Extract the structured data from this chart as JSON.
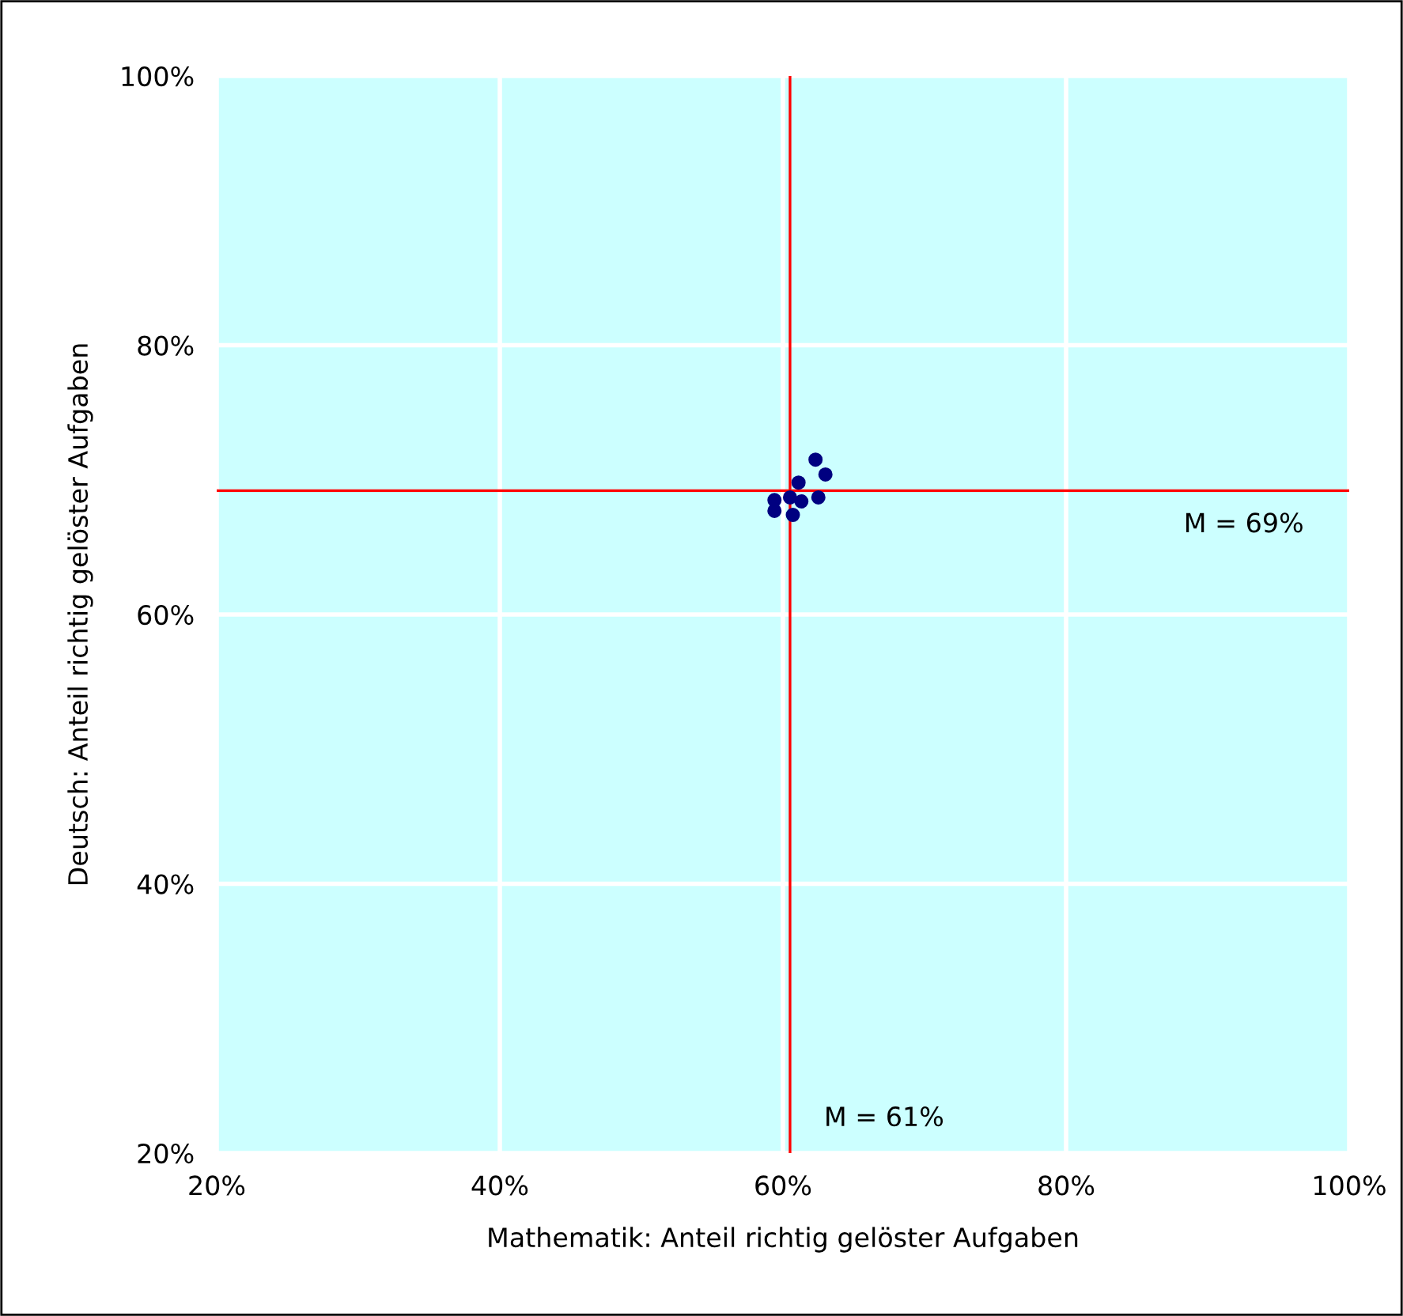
{
  "chart_data": {
    "type": "scatter",
    "xlabel": "Mathematik: Anteil richtig gelöster Aufgaben",
    "ylabel": "Deutsch: Anteil richtig gelöster Aufgaben",
    "x": [
      62.3,
      63.0,
      61.1,
      59.4,
      59.4,
      60.5,
      61.3,
      62.5,
      60.7
    ],
    "series": [
      {
        "color": "#000080",
        "values": [
          71.5,
          70.4,
          69.8,
          68.5,
          67.7,
          68.7,
          68.4,
          68.7,
          67.4
        ]
      }
    ],
    "marker": "circle",
    "xlim": [
      20,
      100
    ],
    "ylim": [
      20,
      100
    ],
    "xticks": [
      {
        "value": 20,
        "label": "20%"
      },
      {
        "value": 40,
        "label": "40%"
      },
      {
        "value": 60,
        "label": "60%"
      },
      {
        "value": 80,
        "label": "80%"
      },
      {
        "value": 100,
        "label": "100%"
      }
    ],
    "yticks": [
      {
        "value": 20,
        "label": "20%"
      },
      {
        "value": 40,
        "label": "40%"
      },
      {
        "value": 60,
        "label": "60%"
      },
      {
        "value": 80,
        "label": "80%"
      },
      {
        "value": 100,
        "label": "100%"
      }
    ],
    "grid": true,
    "ref_lines": [
      {
        "axis": "x",
        "value": 60.5,
        "label": "M = 61%",
        "color": "#ff0000"
      },
      {
        "axis": "y",
        "value": 69.2,
        "label": "M = 69%",
        "color": "#ff0000"
      }
    ]
  }
}
